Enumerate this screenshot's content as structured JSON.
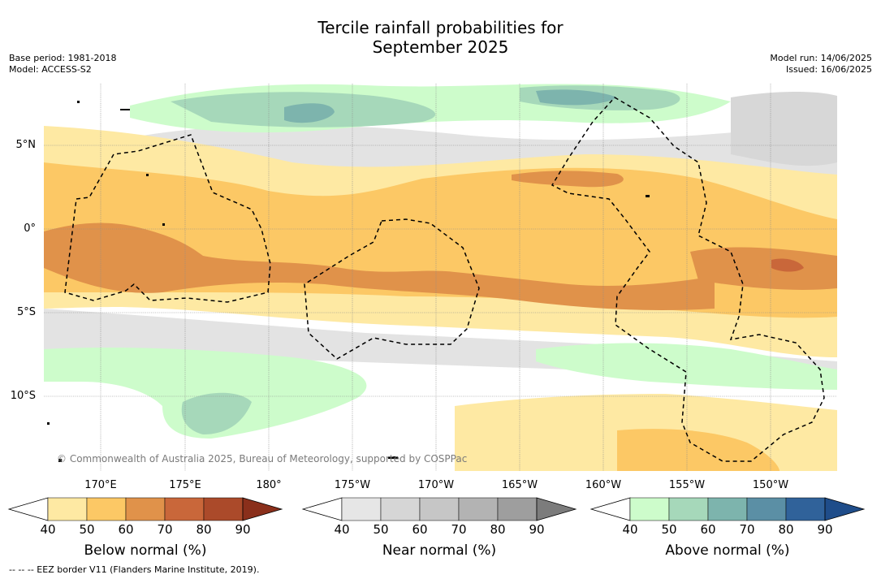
{
  "title_line1": "Tercile rainfall probabilities for",
  "title_line2": "September 2025",
  "meta_left": {
    "base_period": "Base period: 1981-2018",
    "model": "Model: ACCESS-S2"
  },
  "meta_right": {
    "model_run": "Model run: 14/06/2025",
    "issued": "Issued: 16/06/2025"
  },
  "lat_labels": [
    "5°N",
    "0°",
    "5°S",
    "10°S"
  ],
  "lon_labels": [
    "170°E",
    "175°E",
    "180°",
    "175°W",
    "170°W",
    "165°W",
    "160°W",
    "155°W",
    "150°W"
  ],
  "copyright": "© Commonwealth of Australia 2025, Bureau of Meteorology, supported by COSPPac",
  "legend": {
    "below": {
      "title": "Below normal (%)",
      "ticks": [
        "40",
        "50",
        "60",
        "70",
        "80",
        "90"
      ],
      "colors": [
        "#ffffff",
        "#fee9a3",
        "#fcc865",
        "#e0924a",
        "#c9673a",
        "#ab4a2a",
        "#8a2f1b"
      ]
    },
    "near": {
      "title": "Near normal (%)",
      "ticks": [
        "40",
        "50",
        "60",
        "70",
        "80",
        "90"
      ],
      "colors": [
        "#ffffff",
        "#e6e6e6",
        "#d6d6d6",
        "#c6c6c6",
        "#b3b3b3",
        "#9e9e9e",
        "#7c7c7c"
      ]
    },
    "above": {
      "title": "Above normal (%)",
      "ticks": [
        "40",
        "50",
        "60",
        "70",
        "80",
        "90"
      ],
      "colors": [
        "#ffffff",
        "#cdfccb",
        "#a6d8ba",
        "#7db4ad",
        "#5b8fa5",
        "#30629a",
        "#1f4d8a"
      ]
    }
  },
  "footer": "--  --  -- EEZ border V11 (Flanders Marine Institute, 2019).",
  "icons": {
    "triangle_left": "colorbar-min-arrow",
    "triangle_right": "colorbar-max-arrow"
  }
}
